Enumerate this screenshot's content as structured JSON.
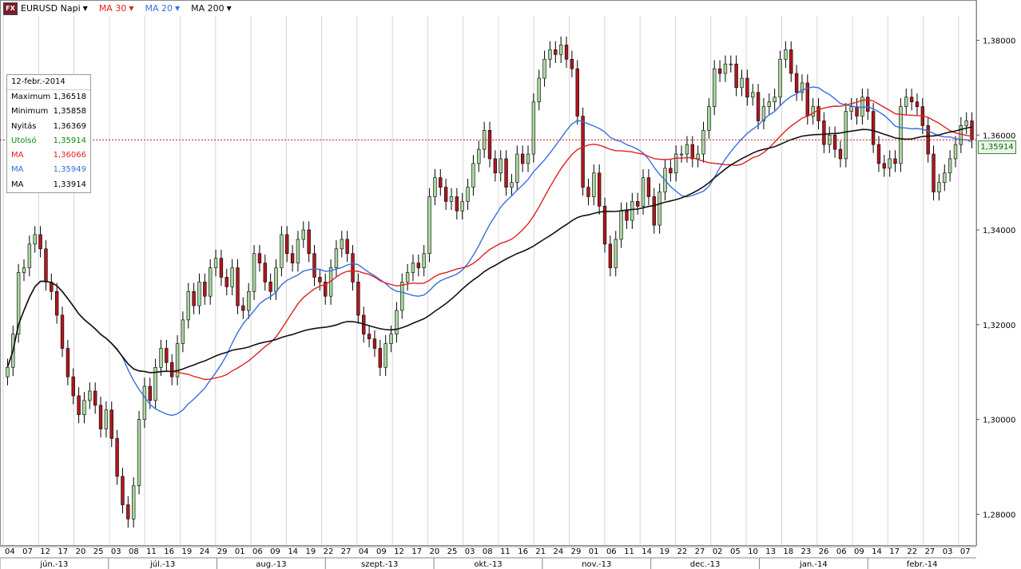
{
  "toolbar": {
    "symbol": "EURUSD Napi",
    "logo": "FX",
    "indicators": [
      {
        "label": "MA 30",
        "color": "#e02020"
      },
      {
        "label": "MA 20",
        "color": "#3a6ee0"
      },
      {
        "label": "MA 200",
        "color": "#111111"
      }
    ]
  },
  "info_box": {
    "date": "12-febr.-2014",
    "rows": [
      {
        "label": "Maximum",
        "value": "1,36518",
        "color": "#000000"
      },
      {
        "label": "Minimum",
        "value": "1,35858",
        "color": "#000000"
      },
      {
        "label": "Nyitás",
        "value": "1,36369",
        "color": "#000000"
      },
      {
        "label": "Utolsó",
        "value": "1,35914",
        "color": "#0a8a0a"
      },
      {
        "label": "MA",
        "value": "1,36066",
        "color": "#e02020"
      },
      {
        "label": "MA",
        "value": "1,35949",
        "color": "#3a6ee0"
      },
      {
        "label": "MA",
        "value": "1,33914",
        "color": "#000000"
      }
    ]
  },
  "last_price_tag": "1,35914",
  "chart_data": {
    "type": "candlestick",
    "ylim": [
      1.2735,
      1.3885
    ],
    "y_ticks": [
      {
        "value": 1.38,
        "label": "1,38000"
      },
      {
        "value": 1.36,
        "label": "1,36000"
      },
      {
        "value": 1.34,
        "label": "1,34000"
      },
      {
        "value": 1.32,
        "label": "1,32000"
      },
      {
        "value": 1.3,
        "label": "1,30000"
      },
      {
        "value": 1.28,
        "label": "1,28000"
      }
    ],
    "day_labels": [
      "04",
      "07",
      "12",
      "17",
      "20",
      "25",
      "03",
      "08",
      "11",
      "16",
      "19",
      "24",
      "29",
      "01",
      "06",
      "09",
      "14",
      "19",
      "22",
      "27",
      "04",
      "09",
      "12",
      "17",
      "20",
      "25",
      "03",
      "08",
      "11",
      "16",
      "21",
      "24",
      "29",
      "01",
      "06",
      "11",
      "14",
      "19",
      "22",
      "27",
      "02",
      "05",
      "10",
      "13",
      "18",
      "23",
      "26",
      "06",
      "09",
      "14",
      "17",
      "22",
      "27",
      "03",
      "07"
    ],
    "month_labels": [
      "jún.-13",
      "júl.-13",
      "aug.-13",
      "szept.-13",
      "okt.-13",
      "nov.-13",
      "dec.-13",
      "jan.-14",
      "febr.-14"
    ],
    "candles_close": [
      1.311,
      1.318,
      1.331,
      1.332,
      1.337,
      1.339,
      1.336,
      1.329,
      1.327,
      1.322,
      1.315,
      1.309,
      1.305,
      1.301,
      1.304,
      1.306,
      1.303,
      1.298,
      1.302,
      1.296,
      1.288,
      1.282,
      1.279,
      1.286,
      1.3,
      1.307,
      1.304,
      1.311,
      1.315,
      1.312,
      1.309,
      1.316,
      1.321,
      1.327,
      1.324,
      1.329,
      1.326,
      1.332,
      1.334,
      1.33,
      1.328,
      1.332,
      1.324,
      1.323,
      1.327,
      1.335,
      1.333,
      1.329,
      1.327,
      1.332,
      1.339,
      1.335,
      1.333,
      1.338,
      1.34,
      1.335,
      1.33,
      1.329,
      1.326,
      1.332,
      1.336,
      1.338,
      1.335,
      1.329,
      1.322,
      1.318,
      1.317,
      1.315,
      1.311,
      1.316,
      1.318,
      1.323,
      1.329,
      1.331,
      1.333,
      1.332,
      1.335,
      1.347,
      1.351,
      1.349,
      1.346,
      1.347,
      1.344,
      1.346,
      1.349,
      1.354,
      1.357,
      1.361,
      1.355,
      1.352,
      1.355,
      1.349,
      1.35,
      1.356,
      1.354,
      1.356,
      1.367,
      1.372,
      1.376,
      1.378,
      1.377,
      1.379,
      1.376,
      1.374,
      1.364,
      1.349,
      1.347,
      1.352,
      1.345,
      1.337,
      1.332,
      1.338,
      1.344,
      1.342,
      1.346,
      1.345,
      1.351,
      1.347,
      1.341,
      1.348,
      1.353,
      1.352,
      1.356,
      1.356,
      1.358,
      1.355,
      1.356,
      1.361,
      1.366,
      1.374,
      1.373,
      1.375,
      1.375,
      1.37,
      1.372,
      1.368,
      1.369,
      1.363,
      1.366,
      1.367,
      1.368,
      1.376,
      1.378,
      1.373,
      1.369,
      1.371,
      1.364,
      1.366,
      1.363,
      1.358,
      1.36,
      1.357,
      1.355,
      1.365,
      1.366,
      1.364,
      1.368,
      1.365,
      1.358,
      1.354,
      1.353,
      1.355,
      1.354,
      1.366,
      1.368,
      1.367,
      1.366,
      1.362,
      1.356,
      1.348,
      1.35,
      1.352,
      1.355,
      1.358,
      1.362,
      1.363,
      1.359
    ]
  }
}
